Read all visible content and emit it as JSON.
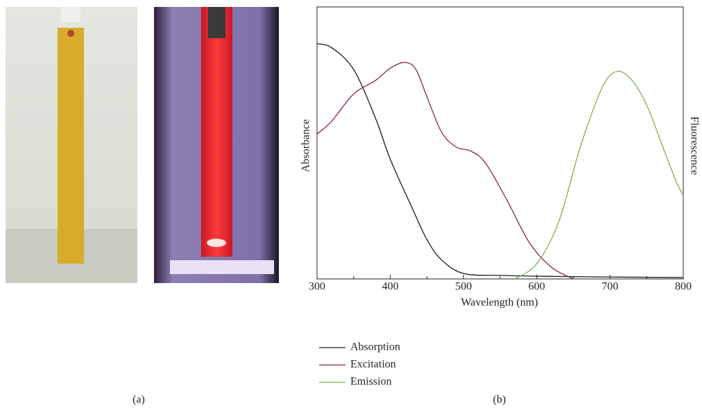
{
  "panel_labels": [
    "(a)",
    "(b)"
  ],
  "chart_data": {
    "type": "line",
    "xlabel": "Wavelength (nm)",
    "ylabel": "Absorbance",
    "y2label": "Fluorescence",
    "xlim": [
      300,
      800
    ],
    "xticks": [
      300,
      400,
      500,
      600,
      700,
      800
    ],
    "xminorticks": [
      350,
      450,
      550,
      650,
      750
    ],
    "ylim": [
      0,
      1
    ],
    "y2lim": [
      0,
      1
    ],
    "series": [
      {
        "name": "Absorption",
        "color": "#1a1a1a",
        "x": [
          300,
          320,
          350,
          380,
          400,
          430,
          450,
          470,
          500,
          550,
          600,
          700,
          800
        ],
        "values": [
          0.865,
          0.85,
          0.77,
          0.59,
          0.44,
          0.26,
          0.145,
          0.07,
          0.02,
          0.013,
          0.01,
          0.007,
          0.005
        ]
      },
      {
        "name": "Excitation",
        "color": "#8b2345",
        "axis": "y2",
        "x": [
          300,
          320,
          350,
          380,
          400,
          420,
          435,
          450,
          470,
          490,
          510,
          530,
          560,
          590,
          620,
          650
        ],
        "values": [
          0.533,
          0.58,
          0.68,
          0.73,
          0.775,
          0.796,
          0.77,
          0.67,
          0.54,
          0.485,
          0.47,
          0.426,
          0.286,
          0.133,
          0.043,
          0
        ]
      },
      {
        "name": "Emission",
        "color": "#7cae5a",
        "axis": "y2",
        "x": [
          570,
          600,
          630,
          660,
          690,
          710,
          730,
          750,
          770,
          790,
          800
        ],
        "values": [
          0,
          0.056,
          0.21,
          0.49,
          0.707,
          0.763,
          0.73,
          0.64,
          0.5,
          0.36,
          0.306
        ]
      }
    ]
  }
}
